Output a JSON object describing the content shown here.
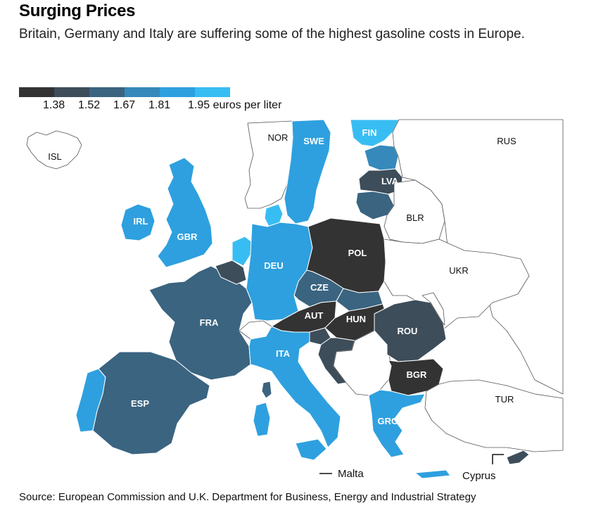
{
  "title": "Surging Prices",
  "subtitle": "Britain, Germany and Italy are suffering some of the highest gasoline costs in Europe.",
  "legend": {
    "colors": [
      "#333333",
      "#3d4d5a",
      "#3a6480",
      "#3689bb",
      "#2ea0df",
      "#38bdf3"
    ],
    "ticks": [
      "1.38",
      "1.52",
      "1.67",
      "1.81",
      "1.95 euros per liter"
    ]
  },
  "labels": {
    "ISL": "ISL",
    "NOR": "NOR",
    "SWE": "SWE",
    "FIN": "FIN",
    "RUS": "RUS",
    "LVA": "LVA",
    "BLR": "BLR",
    "IRL": "IRL",
    "GBR": "GBR",
    "POL": "POL",
    "DEU": "DEU",
    "UKR": "UKR",
    "CZE": "CZE",
    "FRA": "FRA",
    "AUT": "AUT",
    "HUN": "HUN",
    "ROU": "ROU",
    "ITA": "ITA",
    "BGR": "BGR",
    "ESP": "ESP",
    "TUR": "TUR",
    "GRC": "GRC",
    "Malta": "Malta",
    "Cyprus": "Cyprus"
  },
  "source": "Source: European Commission and U.K. Department for Business, Energy and Industrial Strategy"
}
